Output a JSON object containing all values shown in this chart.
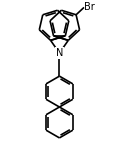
{
  "bg_color": "#ffffff",
  "line_color": "#000000",
  "line_width": 1.2,
  "font_size": 7,
  "br_label": "Br",
  "n_label": "N",
  "figsize": [
    1.31,
    1.47
  ],
  "dpi": 100
}
